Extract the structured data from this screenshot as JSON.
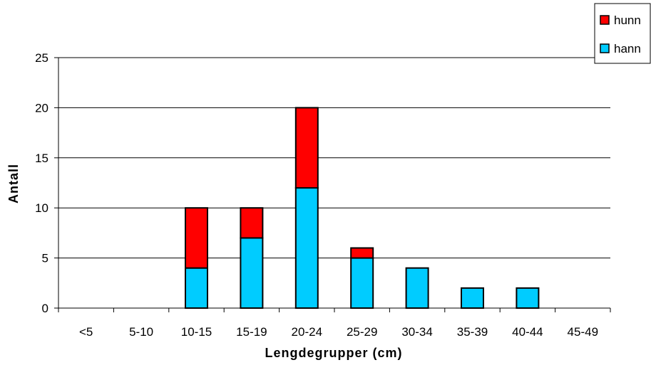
{
  "chart_data": {
    "type": "bar",
    "stacked": true,
    "categories": [
      "<5",
      "5-10",
      "10-15",
      "15-19",
      "20-24",
      "25-29",
      "30-34",
      "35-39",
      "40-44",
      "45-49"
    ],
    "series": [
      {
        "name": "hann",
        "color": "#00CCFF",
        "values": [
          0,
          0,
          4,
          7,
          12,
          5,
          4,
          2,
          2,
          0
        ]
      },
      {
        "name": "hunn",
        "color": "#FF0000",
        "values": [
          0,
          0,
          6,
          3,
          8,
          1,
          0,
          0,
          0,
          0
        ]
      }
    ],
    "title": "",
    "xlabel": "Lengdegrupper (cm)",
    "ylabel": "Antall",
    "ylim": [
      0,
      25
    ],
    "yticks": [
      "0",
      "5",
      "10",
      "15",
      "20",
      "25"
    ],
    "grid": true,
    "legend": {
      "placement": "top-right",
      "entries": [
        {
          "label": "hunn",
          "color": "#FF0000"
        },
        {
          "label": "hann",
          "color": "#00CCFF"
        }
      ]
    }
  }
}
